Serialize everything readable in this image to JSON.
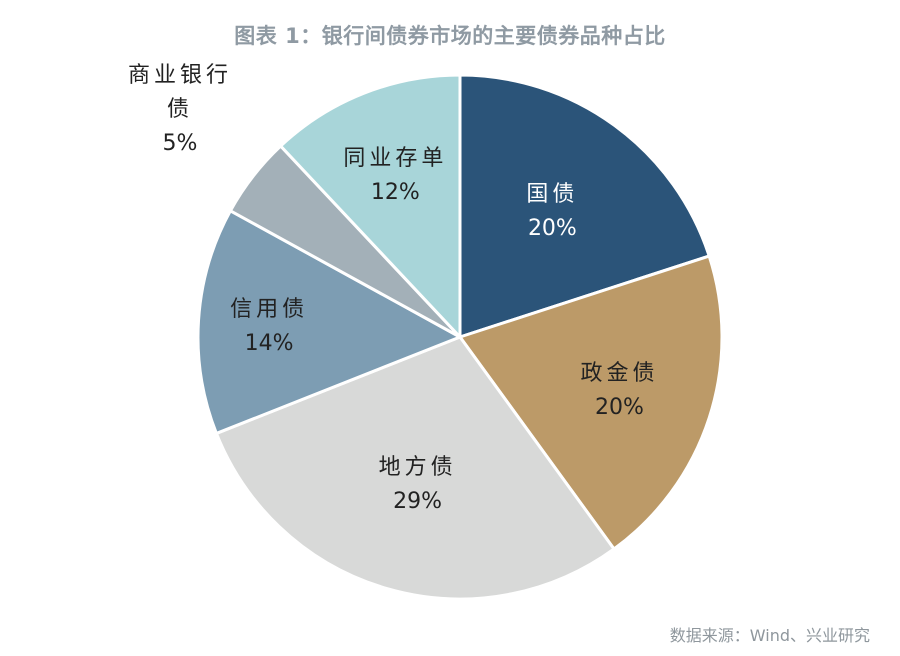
{
  "chart_data": {
    "type": "pie",
    "title": "图表 1：银行间债券市场的主要债券品种占比",
    "source": "数据来源：Wind、兴业研究",
    "slices": [
      {
        "name": "国债",
        "value": 20,
        "value_label": "20%",
        "color": "#2b5479",
        "label_color": "#ffffff"
      },
      {
        "name": "政金债",
        "value": 20,
        "value_label": "20%",
        "color": "#bc9a68",
        "label_color": "#222222"
      },
      {
        "name": "地方债",
        "value": 29,
        "value_label": "29%",
        "color": "#d8d9d8",
        "label_color": "#222222"
      },
      {
        "name": "信用债",
        "value": 14,
        "value_label": "14%",
        "color": "#7d9db3",
        "label_color": "#222222"
      },
      {
        "name": "商业银行债",
        "value": 5,
        "value_label": "5%",
        "color": "#a3b0b8",
        "label_color": "#222222"
      },
      {
        "name": "同业存单",
        "value": 12,
        "value_label": "12%",
        "color": "#a8d5d9",
        "label_color": "#222222"
      }
    ]
  }
}
